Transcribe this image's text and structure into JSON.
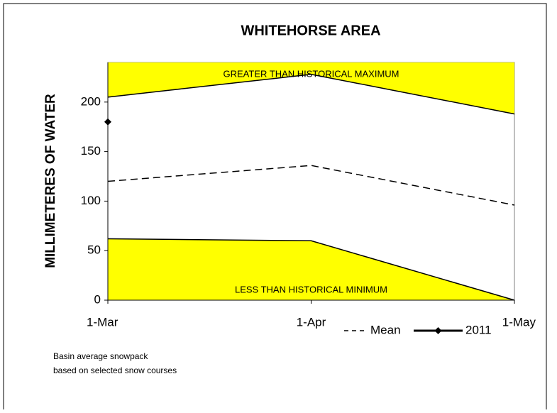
{
  "chart_data": {
    "type": "line",
    "title": "WHITEHORSE AREA",
    "y_label": "MILLIMETERES OF WATER",
    "categories": [
      "1-Mar",
      "1-Apr",
      "1-May"
    ],
    "historical_max": [
      205,
      228,
      188
    ],
    "historical_min": [
      62,
      60,
      0
    ],
    "band_color": "#ffff00",
    "annotations": [
      "GREATER THAN HISTORICAL MAXIMUM",
      "LESS THAN HISTORICAL MINIMUM"
    ],
    "series": [
      {
        "name": "Mean",
        "color": "#000000",
        "values": [
          120,
          136,
          96
        ],
        "dashed": true
      },
      {
        "name": "2011",
        "color": "#000000",
        "values": [
          180,
          null,
          null
        ],
        "marker": "diamond"
      }
    ],
    "ylim": [
      0,
      240
    ],
    "yticks": [
      0,
      50,
      100,
      150,
      200
    ],
    "note": [
      "Basin average snowpack",
      "based on selected snow courses"
    ]
  }
}
